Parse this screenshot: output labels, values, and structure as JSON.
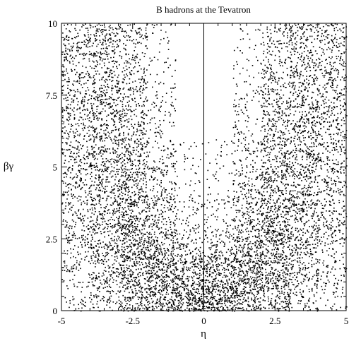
{
  "chart_data": {
    "type": "scatter",
    "title": "B hadrons at the Tevatron",
    "xlabel": "η",
    "ylabel": "βγ",
    "xlim": [
      -5,
      5
    ],
    "ylim": [
      0,
      10
    ],
    "xticks": [
      -5,
      -2.5,
      0,
      2.5,
      5
    ],
    "xtick_labels": [
      "-5",
      "-2.5",
      "0",
      "2.5",
      "5"
    ],
    "yticks": [
      0,
      2.5,
      5,
      7.5,
      10
    ],
    "ytick_labels": [
      "0",
      "2.5",
      "5",
      "7.5",
      "10"
    ],
    "reference_lines": [
      {
        "orientation": "vertical",
        "x": 0
      }
    ],
    "grid": false,
    "legend": "none",
    "marker_color": "#000000",
    "density_bins": {
      "x_edges": [
        -5,
        -4,
        -3,
        -2,
        -1,
        0,
        1,
        2,
        3,
        4,
        5
      ],
      "y_edges": [
        0,
        1,
        2,
        3,
        4,
        5,
        6,
        7,
        8,
        9,
        10
      ],
      "relative_density": [
        [
          2,
          4,
          8,
          11,
          14,
          14,
          11,
          8,
          4,
          2
        ],
        [
          3,
          6,
          10,
          12,
          9,
          9,
          12,
          10,
          6,
          3
        ],
        [
          4,
          7,
          10,
          8,
          4,
          4,
          8,
          10,
          7,
          4
        ],
        [
          4,
          7,
          9,
          6,
          2,
          2,
          6,
          9,
          7,
          4
        ],
        [
          5,
          7,
          8,
          4,
          1,
          1,
          4,
          8,
          7,
          5
        ],
        [
          5,
          7,
          7,
          3,
          1,
          1,
          3,
          7,
          7,
          5
        ],
        [
          5,
          7,
          6,
          2,
          0,
          0,
          2,
          6,
          7,
          5
        ],
        [
          5,
          7,
          5,
          2,
          0,
          0,
          2,
          5,
          7,
          5
        ],
        [
          5,
          6,
          4,
          1,
          0,
          0,
          1,
          4,
          6,
          5
        ],
        [
          5,
          6,
          4,
          1,
          0,
          0,
          1,
          4,
          6,
          5
        ]
      ]
    }
  }
}
